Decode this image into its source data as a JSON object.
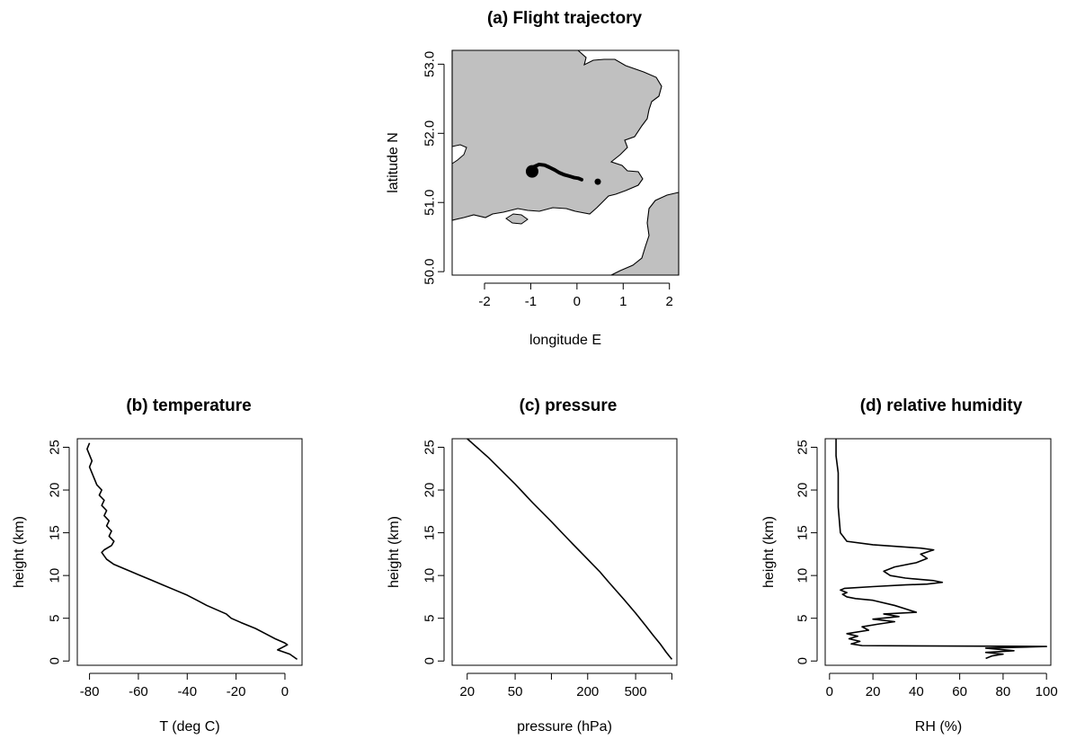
{
  "panels": {
    "a": {
      "title": "(a) Flight trajectory",
      "xlabel": "longitude E",
      "ylabel": "latitude N"
    },
    "b": {
      "title": "(b) temperature",
      "xlabel": "T (deg C)",
      "ylabel": "height (km)"
    },
    "c": {
      "title": "(c) pressure",
      "xlabel": "pressure (hPa)",
      "ylabel": "height (km)"
    },
    "d": {
      "title": "(d) relative humidity",
      "xlabel": "RH (%)",
      "ylabel": "height (km)"
    }
  },
  "colors": {
    "land": "#c0c0c0",
    "line": "#000000",
    "background": "#ffffff"
  },
  "chart_data": [
    {
      "id": "a",
      "type": "map",
      "title": "(a) Flight trajectory",
      "xlabel": "longitude E",
      "ylabel": "latitude N",
      "xlim": [
        -2.7,
        2.2
      ],
      "ylim": [
        49.95,
        53.2
      ],
      "xticks": [
        -2,
        -1,
        0,
        1,
        2
      ],
      "yticks": [
        50.0,
        51.0,
        52.0,
        53.0
      ],
      "xtick_labels": [
        "-2",
        "-1",
        "0",
        "1",
        "2"
      ],
      "ytick_labels": [
        "50.0",
        "51.0",
        "52.0",
        "53.0"
      ],
      "land_color": "#c0c0c0",
      "trajectory": {
        "lon": [
          -1.0,
          -0.92,
          -0.82,
          -0.7,
          -0.6,
          -0.48,
          -0.38,
          -0.27,
          -0.16,
          -0.06,
          0.03,
          0.1
        ],
        "lat": [
          51.47,
          51.52,
          51.55,
          51.54,
          51.51,
          51.47,
          51.43,
          51.4,
          51.38,
          51.36,
          51.35,
          51.33
        ]
      },
      "launch_point": {
        "lon": -0.97,
        "lat": 51.45
      },
      "landing_point": {
        "lon": 0.45,
        "lat": 51.3
      }
    },
    {
      "id": "b",
      "type": "line",
      "title": "(b) temperature",
      "xlabel": "T (deg C)",
      "ylabel": "height (km)",
      "xlim": [
        -85,
        7
      ],
      "ylim": [
        -0.5,
        26
      ],
      "xticks": [
        -80,
        -60,
        -40,
        -20,
        0
      ],
      "xtick_labels": [
        "-80",
        "-60",
        "-40",
        "-20",
        "0"
      ],
      "yticks": [
        0,
        5,
        10,
        15,
        20,
        25
      ],
      "ytick_labels": [
        "0",
        "5",
        "10",
        "15",
        "20",
        "25"
      ],
      "x": [
        5,
        2,
        -3,
        -1,
        1,
        0,
        -4,
        -8,
        -12,
        -18,
        -22,
        -24,
        -28,
        -32,
        -36,
        -40,
        -45,
        -50,
        -55,
        -60,
        -65,
        -70,
        -73,
        -74,
        -75,
        -74,
        -71,
        -70,
        -72,
        -71,
        -73,
        -72,
        -74,
        -73,
        -75,
        -74,
        -76,
        -75,
        -77,
        -78,
        -79,
        -80,
        -79,
        -80,
        -81,
        -80
      ],
      "y": [
        0.2,
        0.8,
        1.3,
        1.6,
        1.9,
        2.1,
        2.6,
        3.2,
        3.8,
        4.5,
        5.0,
        5.5,
        6.0,
        6.5,
        7.1,
        7.7,
        8.3,
        8.9,
        9.5,
        10.1,
        10.7,
        11.3,
        11.9,
        12.3,
        12.7,
        13.0,
        13.5,
        14.0,
        14.6,
        15.2,
        15.8,
        16.4,
        17.0,
        17.6,
        18.2,
        18.8,
        19.4,
        20.0,
        20.6,
        21.3,
        22.0,
        22.7,
        23.4,
        24.1,
        24.8,
        25.5
      ]
    },
    {
      "id": "c",
      "type": "line",
      "title": "(c) pressure",
      "xlabel": "pressure (hPa)",
      "ylabel": "height (km)",
      "xscale": "log",
      "xlim": [
        15,
        1100
      ],
      "ylim": [
        -0.5,
        26
      ],
      "xticks": [
        20,
        50,
        100,
        200,
        500,
        1000
      ],
      "xtick_labels": [
        "20",
        "50",
        "",
        "200",
        "500",
        ""
      ],
      "yticks": [
        0,
        5,
        10,
        15,
        20,
        25
      ],
      "ytick_labels": [
        "0",
        "5",
        "10",
        "15",
        "20",
        "25"
      ],
      "x": [
        1000,
        900,
        800,
        700,
        600,
        500,
        400,
        300,
        250,
        200,
        150,
        100,
        70,
        50,
        30,
        20
      ],
      "y": [
        0.2,
        1.0,
        2.0,
        3.0,
        4.2,
        5.6,
        7.2,
        9.2,
        10.5,
        11.9,
        13.7,
        16.3,
        18.5,
        20.7,
        23.8,
        26.0
      ]
    },
    {
      "id": "d",
      "type": "line",
      "title": "(d) relative humidity",
      "xlabel": "RH (%)",
      "ylabel": "height (km)",
      "xlim": [
        -2,
        102
      ],
      "ylim": [
        -0.5,
        26
      ],
      "xticks": [
        0,
        20,
        40,
        60,
        80,
        100
      ],
      "xtick_labels": [
        "0",
        "20",
        "40",
        "60",
        "80",
        "100"
      ],
      "yticks": [
        0,
        5,
        10,
        15,
        20,
        25
      ],
      "ytick_labels": [
        "0",
        "5",
        "10",
        "15",
        "20",
        "25"
      ],
      "x": [
        72,
        75,
        80,
        72,
        85,
        72,
        100,
        15,
        10,
        14,
        9,
        13,
        8,
        18,
        15,
        22,
        30,
        20,
        32,
        25,
        40,
        30,
        20,
        12,
        8,
        6,
        8,
        5,
        7,
        20,
        35,
        45,
        52,
        48,
        35,
        28,
        25,
        30,
        40,
        45,
        42,
        48,
        42,
        20,
        8,
        5,
        4,
        4,
        3,
        3
      ],
      "y": [
        0.3,
        0.6,
        0.8,
        1.0,
        1.2,
        1.5,
        1.7,
        1.8,
        2.0,
        2.3,
        2.6,
        2.9,
        3.2,
        3.6,
        4.0,
        4.3,
        4.6,
        4.9,
        5.2,
        5.5,
        5.7,
        6.5,
        7.1,
        7.3,
        7.5,
        7.8,
        8.0,
        8.3,
        8.5,
        8.7,
        8.9,
        9.0,
        9.2,
        9.4,
        9.7,
        10.0,
        10.5,
        11.0,
        11.5,
        12.0,
        12.5,
        13.0,
        13.2,
        13.6,
        14.0,
        15.0,
        18.0,
        22.0,
        24.0,
        26.0
      ]
    }
  ]
}
